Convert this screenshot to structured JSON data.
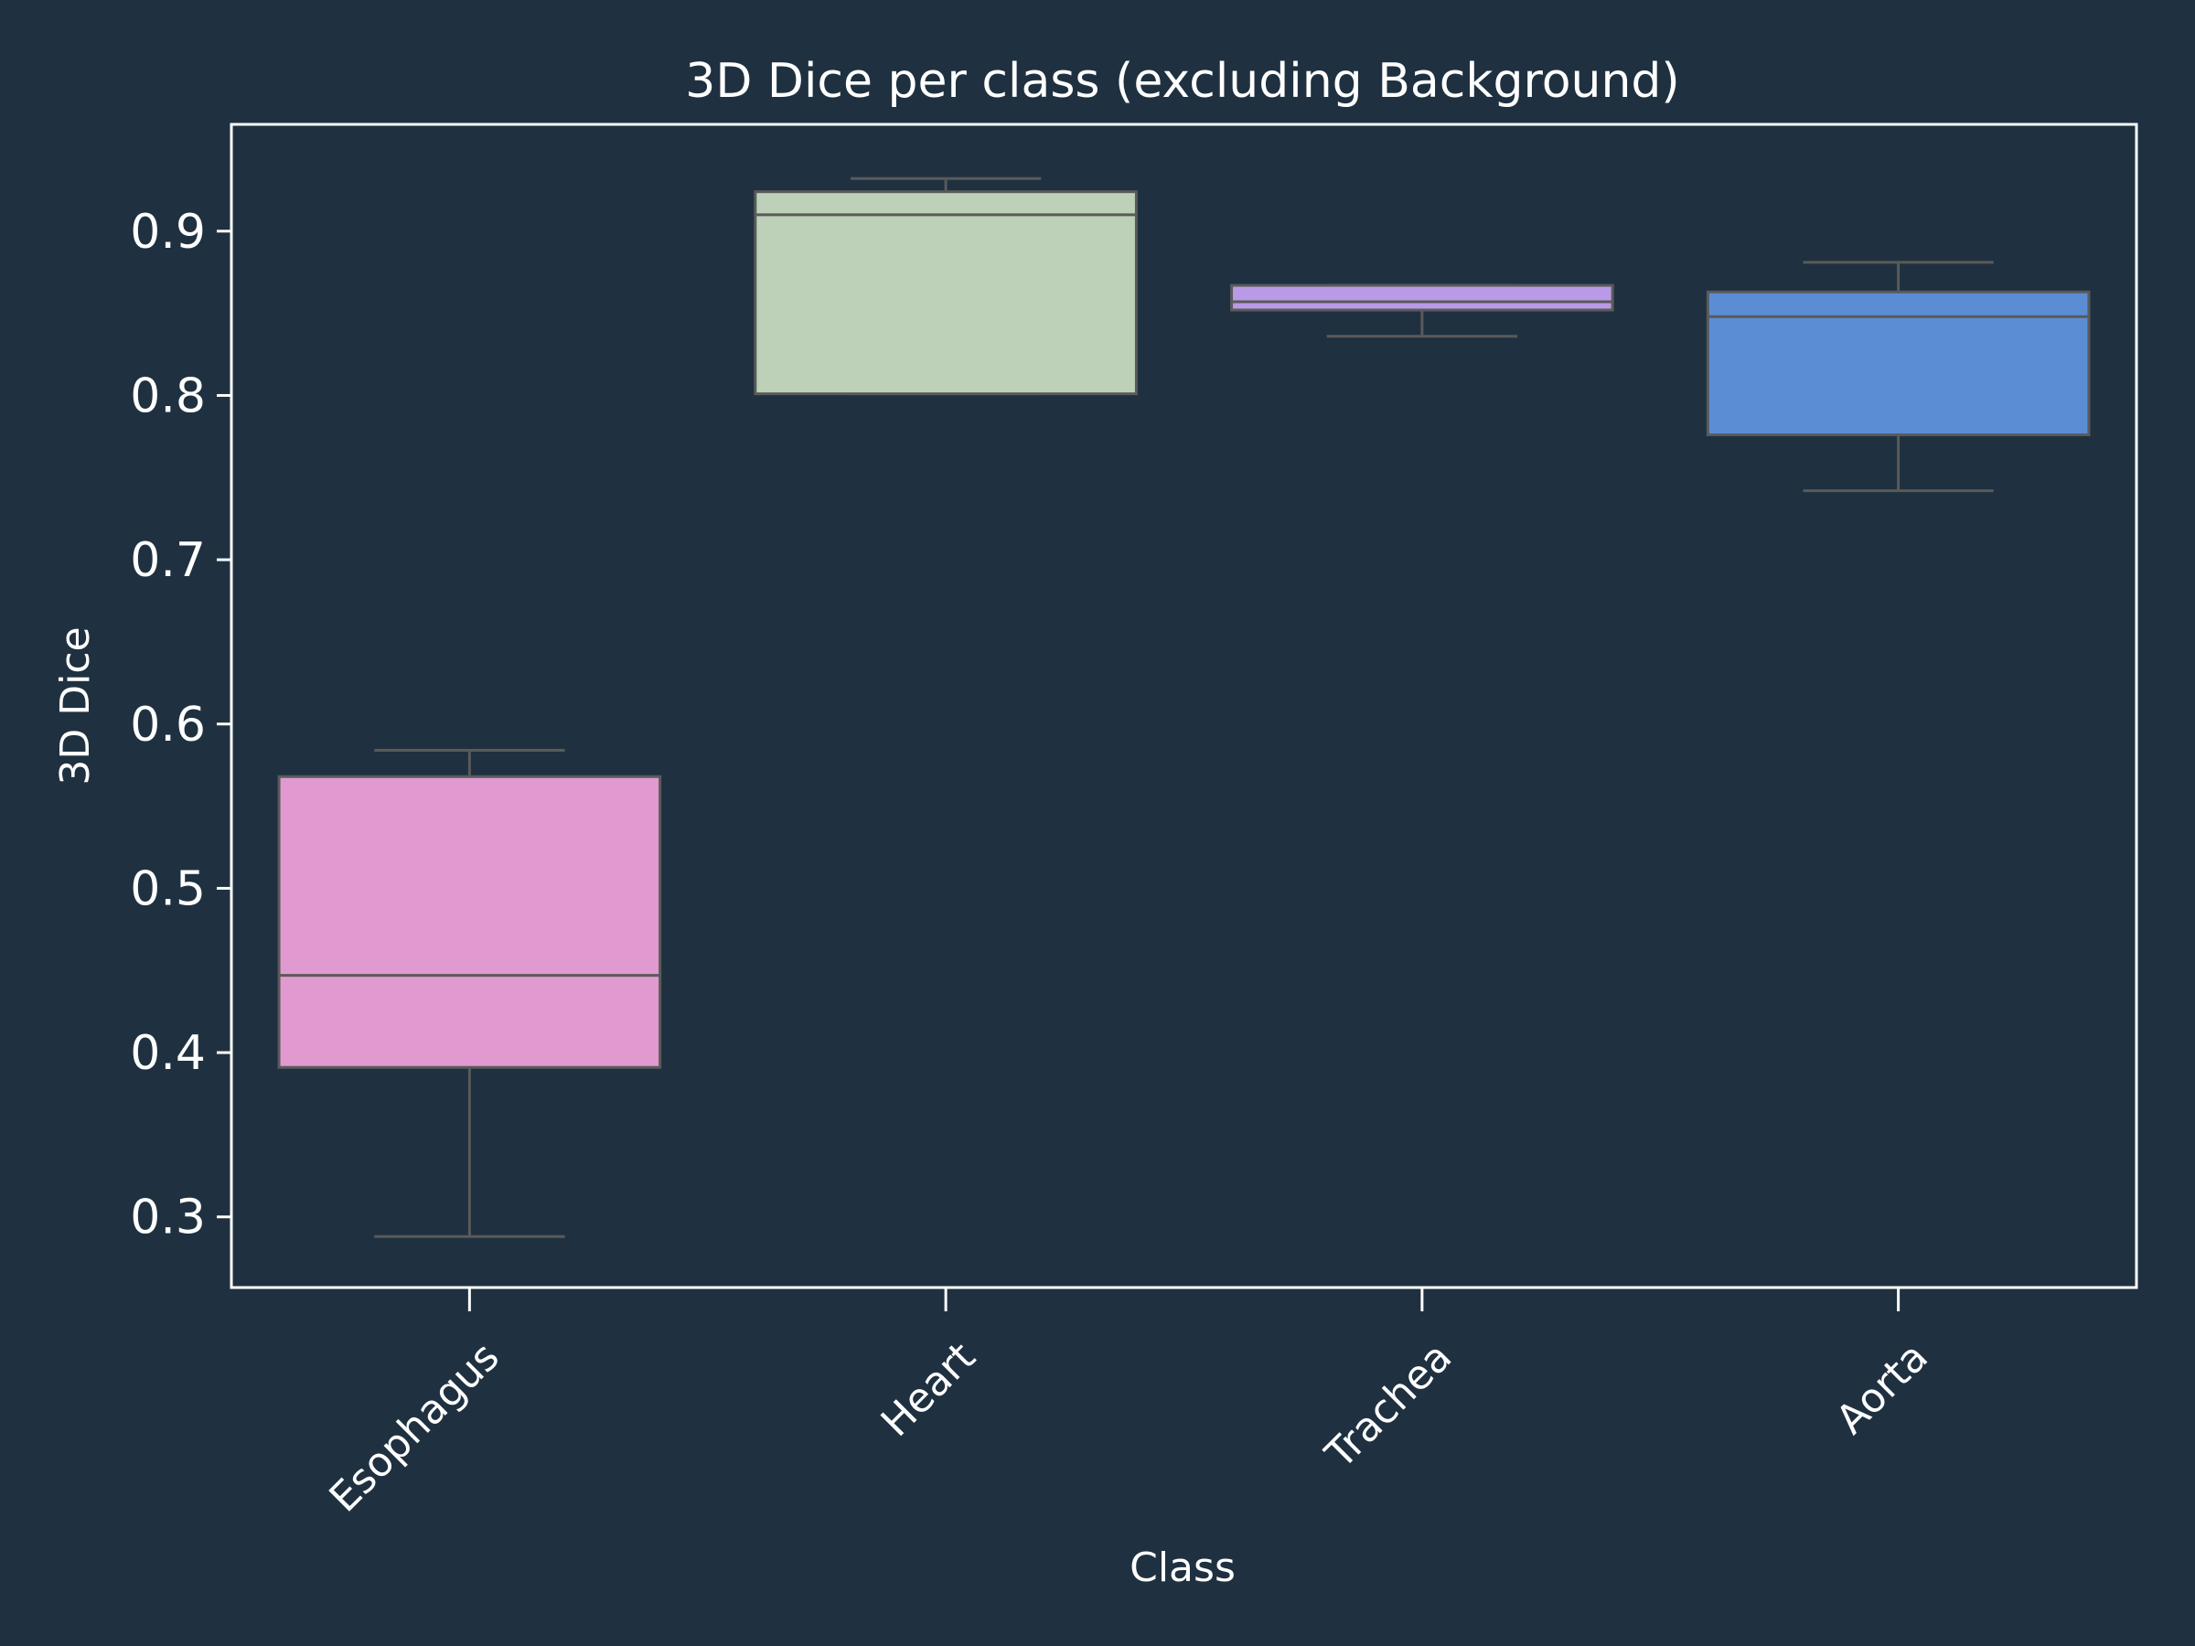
{
  "chart_data": {
    "type": "box",
    "title": "3D Dice per class (excluding Background)",
    "xlabel": "Class",
    "ylabel": "3D Dice",
    "categories": [
      "Esophagus",
      "Heart",
      "Trachea",
      "Aorta"
    ],
    "boxes": [
      {
        "name": "Esophagus",
        "whisker_low": 0.288,
        "q1": 0.391,
        "median": 0.447,
        "q3": 0.568,
        "whisker_high": 0.584,
        "color": "#e09ad0"
      },
      {
        "name": "Heart",
        "whisker_low": 0.801,
        "q1": 0.801,
        "median": 0.91,
        "q3": 0.924,
        "whisker_high": 0.932,
        "color": "#bcd1b8"
      },
      {
        "name": "Trachea",
        "whisker_low": 0.836,
        "q1": 0.852,
        "median": 0.857,
        "q3": 0.867,
        "whisker_high": 0.867,
        "color": "#b89ae6"
      },
      {
        "name": "Aorta",
        "whisker_low": 0.742,
        "q1": 0.776,
        "median": 0.848,
        "q3": 0.863,
        "whisker_high": 0.881,
        "color": "#5b8dd4"
      }
    ],
    "ylim": [
      0.257,
      0.965
    ],
    "yticks": [
      "0.3",
      "0.4",
      "0.5",
      "0.6",
      "0.7",
      "0.8",
      "0.9"
    ],
    "grid": false,
    "legend": "none",
    "background_color": "#1f3140",
    "axes_color": "#ffffff",
    "box_edge_color": "#5a5a5a"
  }
}
